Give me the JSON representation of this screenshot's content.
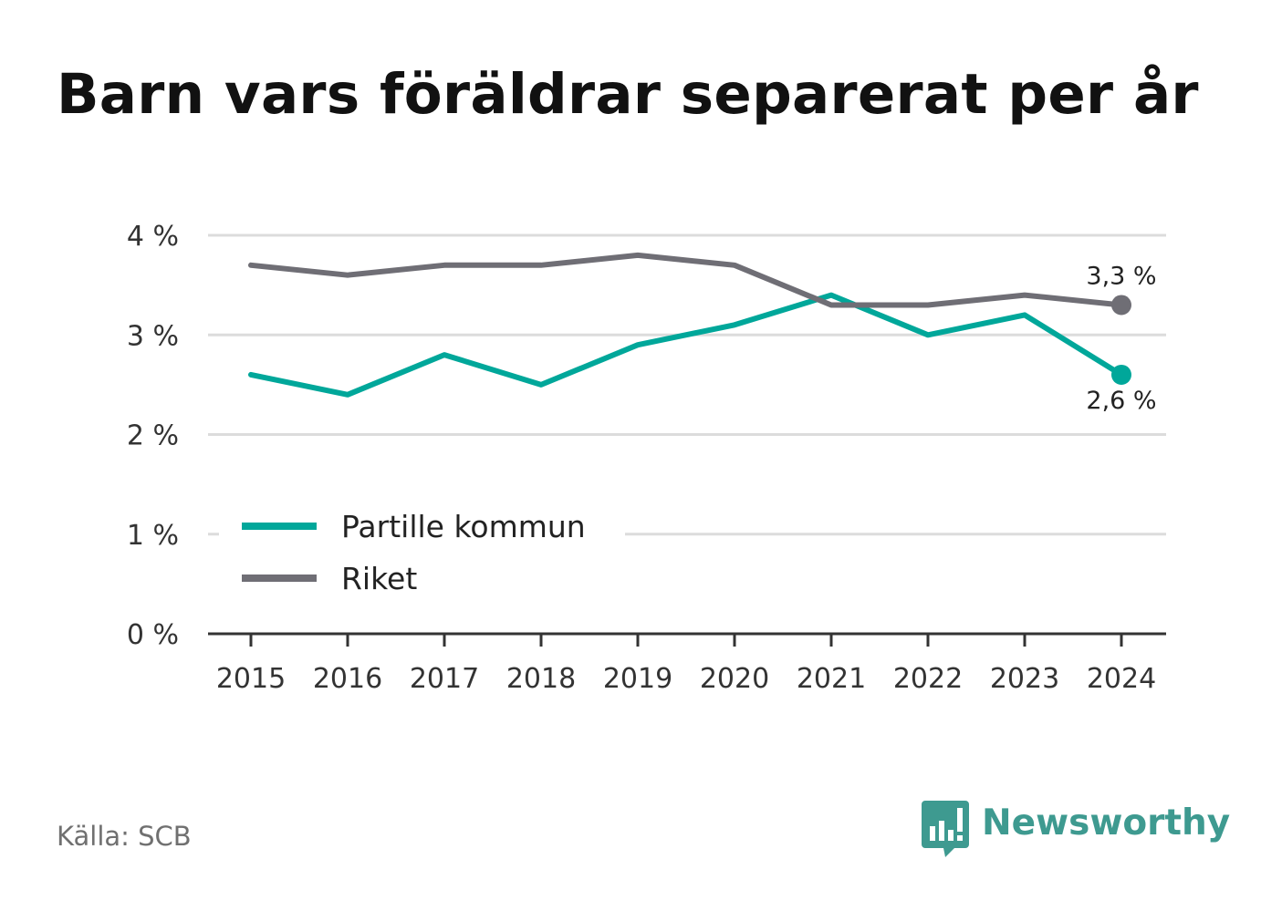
{
  "title": "Barn vars föräldrar separerat per år",
  "source": "Källa: SCB",
  "brand": "Newsworthy",
  "colors": {
    "accent": "#00a79a",
    "secondary": "#6f6e75",
    "grid": "#dcdcdc",
    "axis": "#333333"
  },
  "chart_data": {
    "type": "line",
    "x": [
      "2015",
      "2016",
      "2017",
      "2018",
      "2019",
      "2020",
      "2021",
      "2022",
      "2023",
      "2024"
    ],
    "series": [
      {
        "name": "Partille kommun",
        "color": "#00a79a",
        "values": [
          2.6,
          2.4,
          2.8,
          2.5,
          2.9,
          3.1,
          3.4,
          3.0,
          3.2,
          2.6
        ]
      },
      {
        "name": "Riket",
        "color": "#6f6e75",
        "values": [
          3.7,
          3.6,
          3.7,
          3.7,
          3.8,
          3.7,
          3.3,
          3.3,
          3.4,
          3.3
        ]
      }
    ],
    "end_labels": [
      "2,6 %",
      "3,3 %"
    ],
    "y_ticks": [
      0,
      1,
      2,
      3,
      4
    ],
    "y_tick_labels": [
      "0 %",
      "1 %",
      "2 %",
      "3 %",
      "4 %"
    ],
    "ylim": [
      0,
      4
    ],
    "grid": true,
    "legend": "center-left"
  }
}
